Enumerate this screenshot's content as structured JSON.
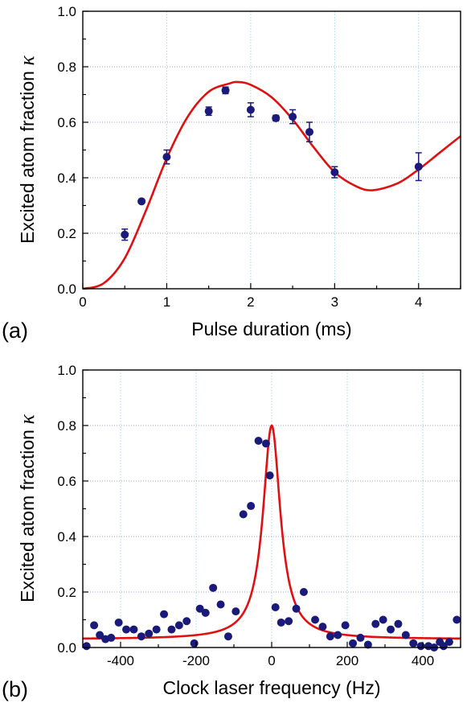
{
  "colors": {
    "points": "#1a1a7a",
    "fit": "#e01010"
  },
  "chart_data": [
    {
      "type": "scatter",
      "panel_label": "(a)",
      "xlabel": "Pulse duration (ms)",
      "ylabel_text": "Excited atom fraction",
      "ylabel_symbol": "κ",
      "xlim": [
        0,
        4.5
      ],
      "ylim": [
        0,
        1.0
      ],
      "x_ticks": [
        0,
        1,
        2,
        3,
        4
      ],
      "x_tick_labels": [
        "0",
        "1",
        "2",
        "3",
        "4"
      ],
      "y_ticks": [
        0.0,
        0.2,
        0.4,
        0.6,
        0.8,
        1.0
      ],
      "y_tick_labels": [
        "0.0",
        "0.2",
        "0.4",
        "0.6",
        "0.8",
        "1.0"
      ],
      "grid": true,
      "series": [
        {
          "kind": "points_with_error",
          "x": [
            0.5,
            0.7,
            1.0,
            1.5,
            1.7,
            2.0,
            2.3,
            2.5,
            2.7,
            3.0,
            4.0
          ],
          "y": [
            0.195,
            0.315,
            0.475,
            0.64,
            0.715,
            0.645,
            0.615,
            0.62,
            0.565,
            0.42,
            0.44
          ],
          "err": [
            0.02,
            0.0,
            0.025,
            0.015,
            0.012,
            0.025,
            0.01,
            0.025,
            0.035,
            0.02,
            0.05
          ]
        },
        {
          "kind": "fit_line",
          "x": [
            0,
            0.25,
            0.5,
            0.75,
            1.0,
            1.25,
            1.5,
            1.75,
            1.85,
            2.0,
            2.25,
            2.5,
            2.75,
            3.0,
            3.25,
            3.45,
            3.75,
            4.0,
            4.25,
            4.5
          ],
          "y": [
            0,
            0.02,
            0.11,
            0.28,
            0.47,
            0.62,
            0.71,
            0.74,
            0.745,
            0.735,
            0.69,
            0.61,
            0.51,
            0.42,
            0.37,
            0.355,
            0.38,
            0.43,
            0.49,
            0.55
          ]
        }
      ]
    },
    {
      "type": "scatter",
      "panel_label": "(b)",
      "xlabel": "Clock laser frequency (Hz)",
      "ylabel_text": "Excited atom fraction",
      "ylabel_symbol": "κ",
      "xlim": [
        -500,
        500
      ],
      "ylim": [
        0,
        1.0
      ],
      "x_ticks": [
        -400,
        -200,
        0,
        200,
        400
      ],
      "x_tick_labels": [
        "-400",
        "-200",
        "0",
        "200",
        "400"
      ],
      "y_ticks": [
        0.0,
        0.2,
        0.4,
        0.6,
        0.8,
        1.0
      ],
      "y_tick_labels": [
        "0.0",
        "0.2",
        "0.4",
        "0.6",
        "0.8",
        "1.0"
      ],
      "grid": true,
      "series": [
        {
          "kind": "points",
          "x": [
            -490,
            -470,
            -455,
            -440,
            -425,
            -405,
            -385,
            -365,
            -345,
            -325,
            -305,
            -285,
            -265,
            -245,
            -225,
            -205,
            -190,
            -175,
            -155,
            -135,
            -115,
            -95,
            -75,
            -55,
            -35,
            -15,
            -5,
            10,
            25,
            45,
            65,
            85,
            115,
            135,
            155,
            175,
            195,
            215,
            235,
            255,
            275,
            295,
            315,
            335,
            355,
            375,
            395,
            415,
            430,
            445,
            455,
            470,
            490
          ],
          "y": [
            0.005,
            0.08,
            0.045,
            0.03,
            0.035,
            0.09,
            0.065,
            0.065,
            0.04,
            0.05,
            0.065,
            0.12,
            0.065,
            0.08,
            0.095,
            0.015,
            0.14,
            0.125,
            0.215,
            0.155,
            0.04,
            0.13,
            0.48,
            0.51,
            0.745,
            0.735,
            0.62,
            0.145,
            0.09,
            0.095,
            0.14,
            0.2,
            0.1,
            0.075,
            0.04,
            0.045,
            0.08,
            0.015,
            0.035,
            0.01,
            0.085,
            0.1,
            0.065,
            0.085,
            0.045,
            0.015,
            0.005,
            0.005,
            0.0,
            0.02,
            0.005,
            0.02,
            0.1
          ]
        },
        {
          "kind": "fit_line",
          "center": 0,
          "fwhm": 56,
          "peak": 0.8,
          "baseline": 0.03
        }
      ]
    }
  ]
}
